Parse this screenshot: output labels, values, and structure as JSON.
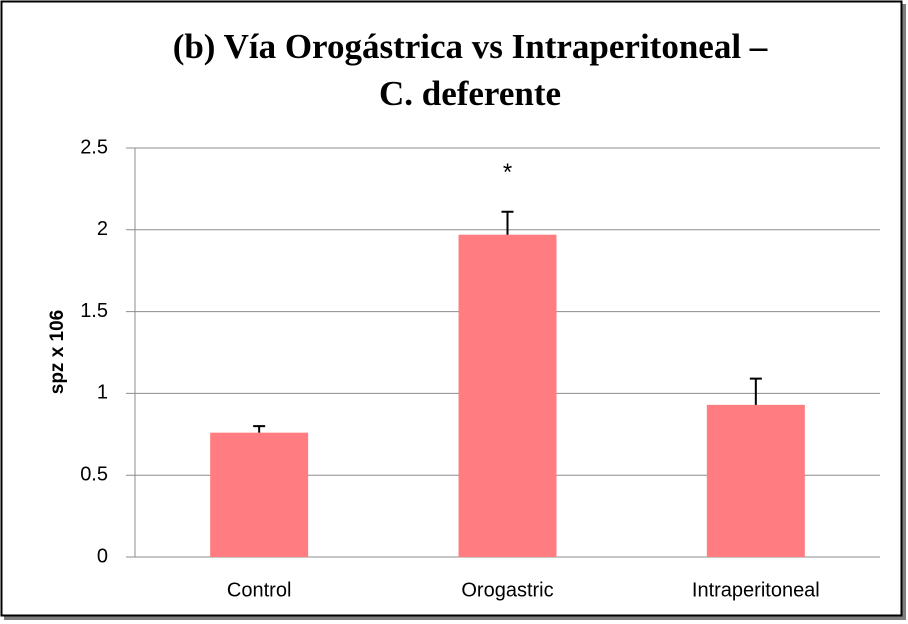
{
  "chart_data": {
    "type": "bar",
    "title": [
      "(b) Vía Orogástrica vs Intraperitoneal –",
      "C. deferente"
    ],
    "y_label": "spz x 106",
    "categories": [
      "Control",
      "Orogastric",
      "Intraperitoneal"
    ],
    "values": [
      0.76,
      1.97,
      0.93
    ],
    "errors": [
      0.04,
      0.14,
      0.16
    ],
    "color": "#ff7c80",
    "annotations": [
      {
        "text": "*",
        "category": "Orogastric"
      }
    ],
    "ylim": [
      0,
      2.5
    ],
    "yticks": [
      0,
      0.5,
      1,
      1.5,
      2,
      2.5
    ],
    "grid": true
  }
}
